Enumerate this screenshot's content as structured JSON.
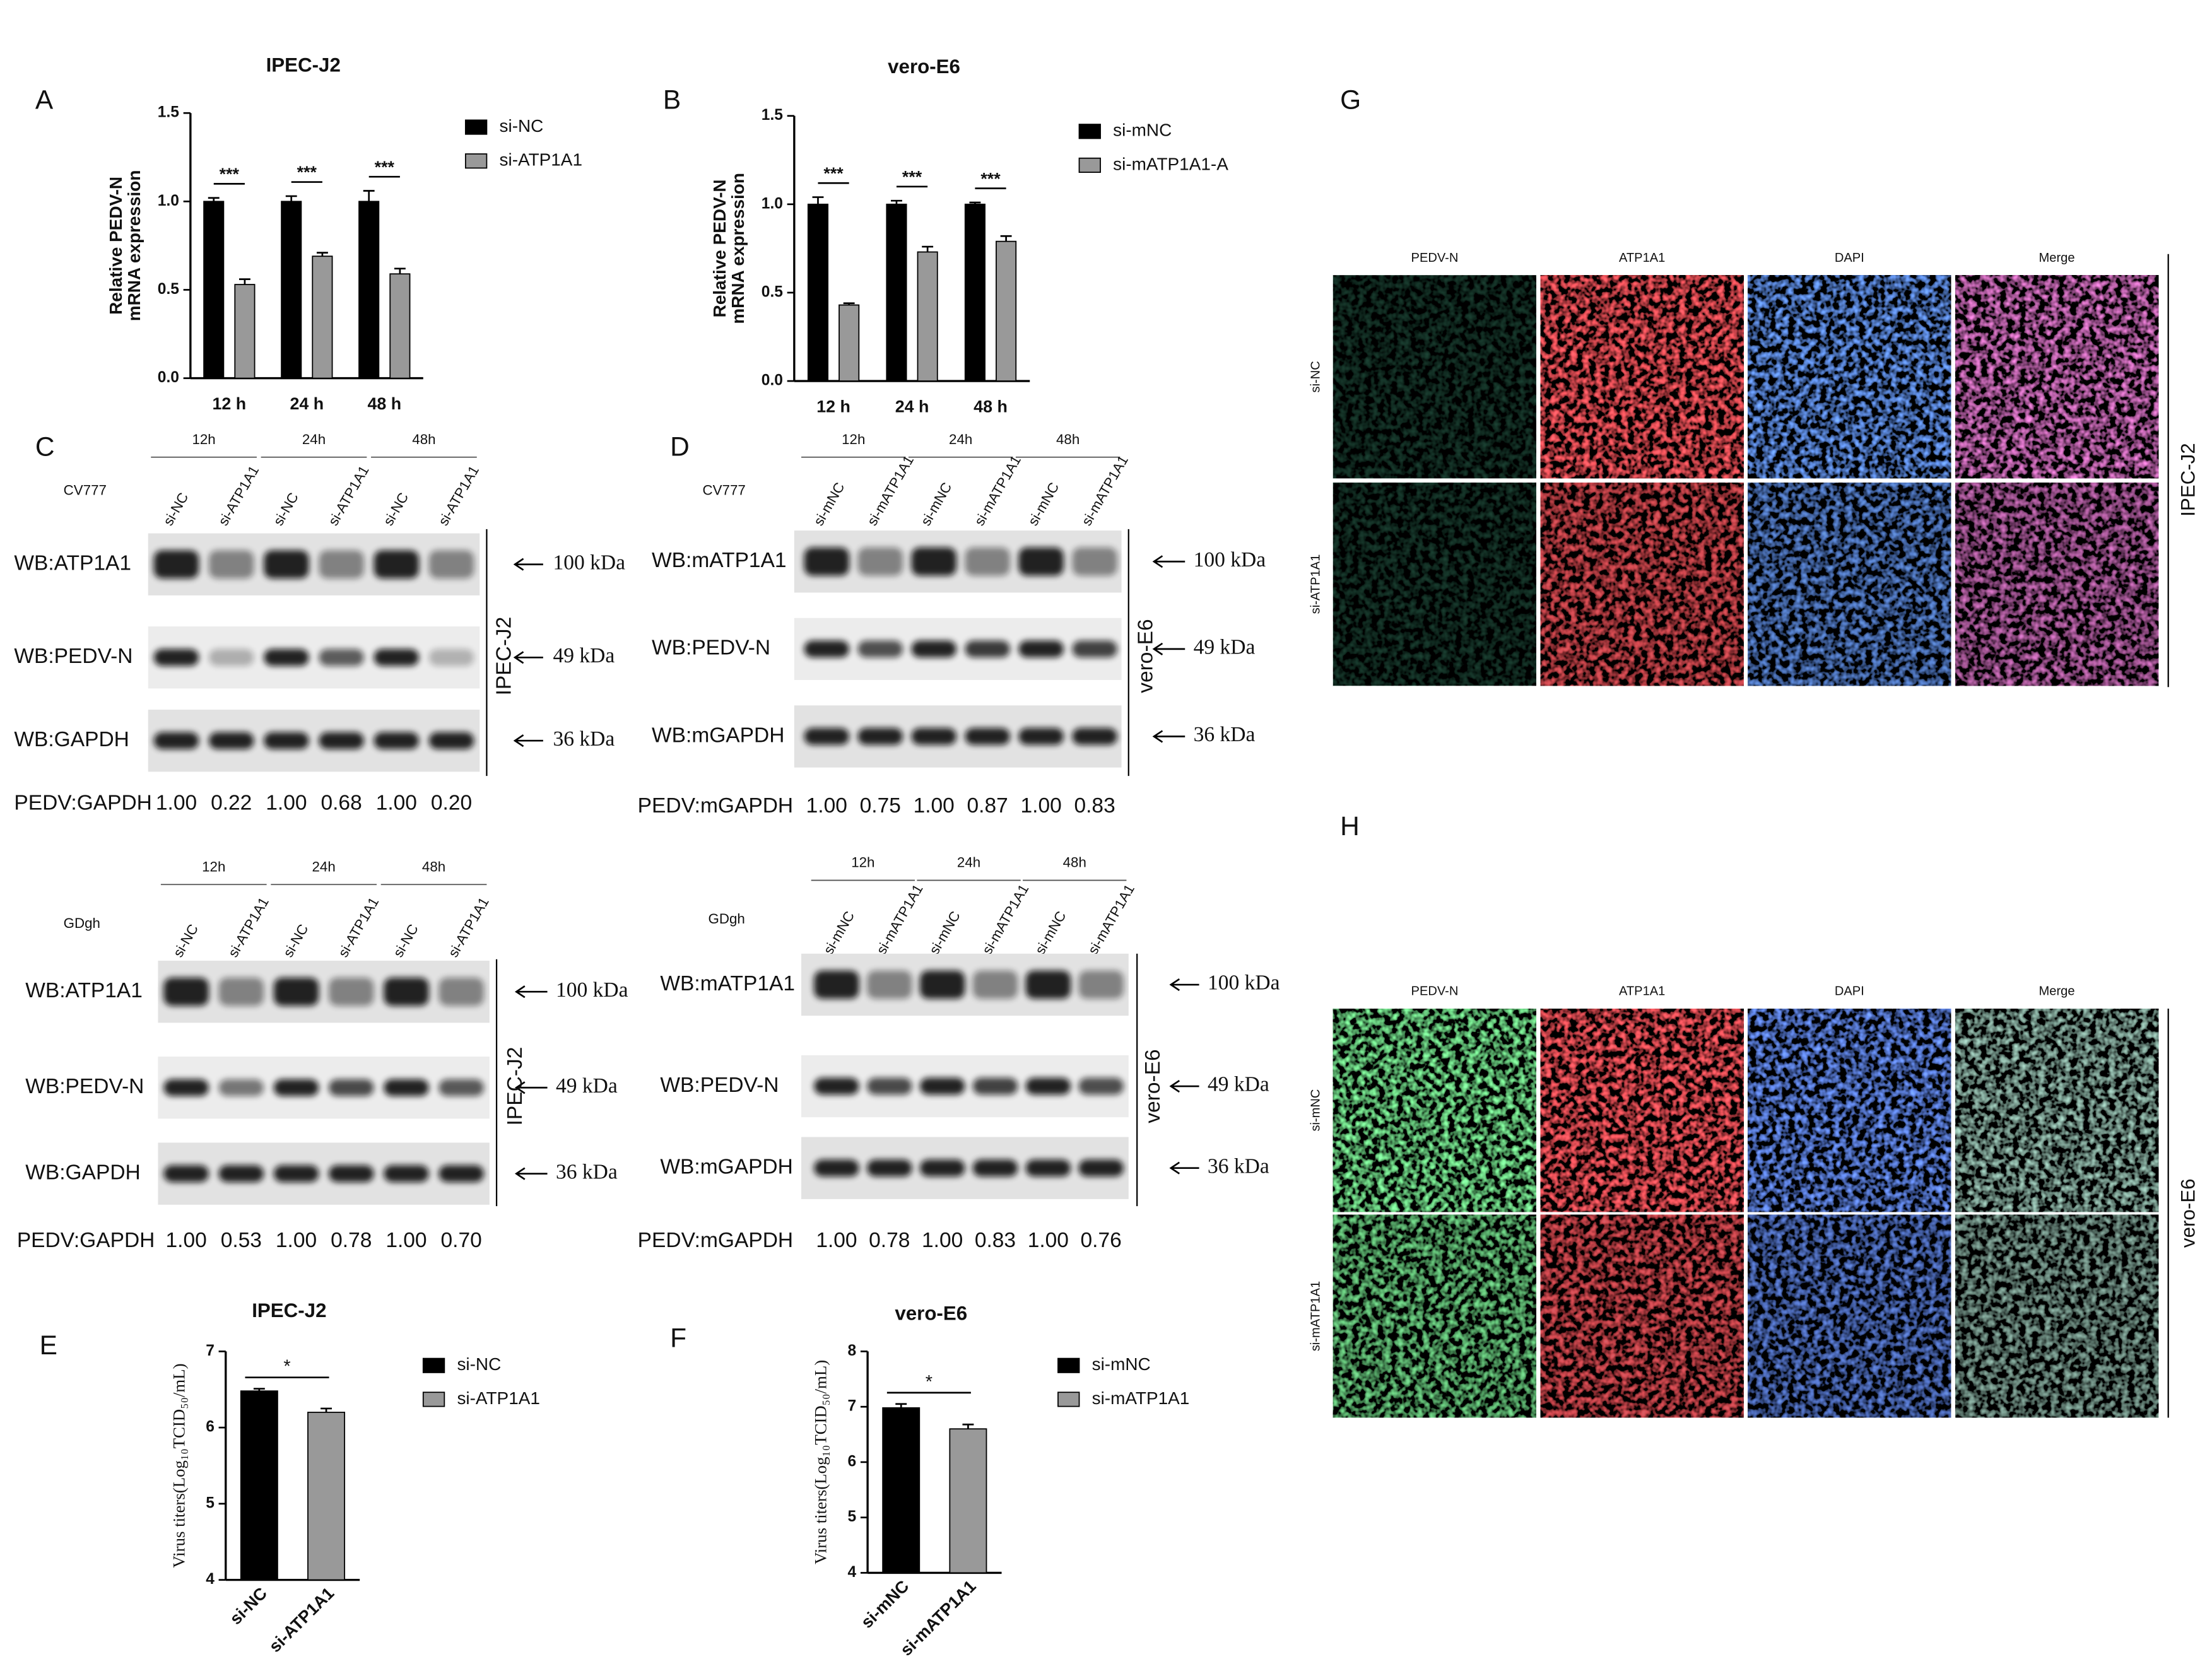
{
  "panel_letters": [
    "A",
    "B",
    "C",
    "D",
    "E",
    "F",
    "G",
    "H"
  ],
  "chart_data": [
    {
      "type": "bar",
      "title": "IPEC-J2",
      "ylabel": [
        "Relative PEDV-N",
        "mRNA expression"
      ],
      "categories": [
        "12 h",
        "24 h",
        "48 h"
      ],
      "series": [
        {
          "name": "si-NC",
          "color": "#000000",
          "values": [
            1,
            1,
            1
          ],
          "errors": [
            0.02,
            0.03,
            0.06
          ]
        },
        {
          "name": "si-ATP1A1",
          "color": "#999999",
          "values": [
            0.53,
            0.69,
            0.59
          ],
          "errors": [
            0.03,
            0.02,
            0.03
          ]
        }
      ],
      "significance": [
        "***",
        "***",
        "***"
      ],
      "ylim": [
        0,
        1.5
      ],
      "yticks": [
        {
          "value": 0,
          "label": "0.0"
        },
        {
          "value": 0.5,
          "label": "0.5"
        },
        {
          "value": 1,
          "label": "1.0"
        },
        1.5
      ]
    },
    {
      "type": "bar",
      "title": "vero-E6",
      "ylabel": [
        "Relative PEDV-N",
        "mRNA expression"
      ],
      "categories": [
        "12 h",
        "24 h",
        "48 h"
      ],
      "series": [
        {
          "name": "si-mNC",
          "color": "#000000",
          "values": [
            1,
            1,
            1
          ],
          "errors": [
            0.04,
            0.02,
            0.01
          ]
        },
        {
          "name": "si-mATP1A1-A",
          "color": "#999999",
          "values": [
            0.43,
            0.73,
            0.79
          ],
          "errors": [
            0.01,
            0.03,
            0.03
          ]
        }
      ],
      "significance": [
        "***",
        "***",
        "***"
      ],
      "ylim": [
        0,
        1.5
      ],
      "yticks": [
        {
          "value": 0,
          "label": "0.0"
        },
        {
          "value": 0.5,
          "label": "0.5"
        },
        {
          "value": 1,
          "label": "1.0"
        },
        1.5
      ]
    },
    {
      "type": "bar",
      "title": "IPEC-J2",
      "ylabel": [
        "Virus titers(Log₁₀TCID₅₀/mL)"
      ],
      "categories": [
        "si-NC",
        "si-ATP1A1"
      ],
      "values": [
        6.48,
        6.2
      ],
      "errors": [
        0.03,
        0.05
      ],
      "colors": [
        "#000000",
        "#999999"
      ],
      "legend": [
        "si-NC",
        "si-ATP1A1"
      ],
      "significance": "*",
      "ylim": [
        4,
        7
      ],
      "yticks": [
        4,
        5,
        6,
        7
      ]
    },
    {
      "type": "bar",
      "title": "vero-E6",
      "ylabel": [
        "Virus titers(Log₁₀TCID₅₀/mL)"
      ],
      "categories": [
        "si-mNC",
        "si-mATP1A1"
      ],
      "values": [
        6.98,
        6.6
      ],
      "errors": [
        0.07,
        0.08
      ],
      "colors": [
        "#000000",
        "#999999"
      ],
      "legend": [
        "si-mNC",
        "si-mATP1A1"
      ],
      "significance": "*",
      "ylim": [
        4,
        8
      ],
      "yticks": [
        4,
        5,
        6,
        7,
        8
      ]
    }
  ],
  "blots": [
    {
      "virus": "CV777",
      "times": [
        "12h",
        "24h",
        "48h"
      ],
      "lanes": [
        "si-NC",
        "si-ATP1A1",
        "si-NC",
        "si-ATP1A1",
        "si-NC",
        "si-ATP1A1"
      ],
      "rows": [
        {
          "label": "WB:ATP1A1",
          "size": "100 kDa"
        },
        {
          "label": "WB:PEDV-N",
          "size": "49 kDa"
        },
        {
          "label": "WB:GAPDH",
          "size": "36 kDa"
        }
      ],
      "cell_line": "IPEC-J2",
      "ratio_label": "PEDV:GAPDH",
      "ratios": [
        "1.00",
        "0.22",
        "1.00",
        "0.68",
        "1.00",
        "0.20"
      ]
    },
    {
      "virus": "GDgh",
      "times": [
        "12h",
        "24h",
        "48h"
      ],
      "lanes": [
        "si-NC",
        "si-ATP1A1",
        "si-NC",
        "si-ATP1A1",
        "si-NC",
        "si-ATP1A1"
      ],
      "rows": [
        {
          "label": "WB:ATP1A1",
          "size": "100 kDa"
        },
        {
          "label": "WB:PEDV-N",
          "size": "49 kDa"
        },
        {
          "label": "WB:GAPDH",
          "size": "36 kDa"
        }
      ],
      "cell_line": "IPEC-J2",
      "ratio_label": "PEDV:GAPDH",
      "ratios": [
        "1.00",
        "0.53",
        "1.00",
        "0.78",
        "1.00",
        "0.70"
      ]
    },
    {
      "virus": "CV777",
      "times": [
        "12h",
        "24h",
        "48h"
      ],
      "lanes": [
        "si-mNC",
        "si-mATP1A1",
        "si-mNC",
        "si-mATP1A1",
        "si-mNC",
        "si-mATP1A1"
      ],
      "rows": [
        {
          "label": "WB:mATP1A1",
          "size": "100 kDa"
        },
        {
          "label": "WB:PEDV-N",
          "size": "49 kDa"
        },
        {
          "label": "WB:mGAPDH",
          "size": "36 kDa"
        }
      ],
      "cell_line": "vero-E6",
      "ratio_label": "PEDV:mGAPDH",
      "ratios": [
        "1.00",
        "0.75",
        "1.00",
        "0.87",
        "1.00",
        "0.83"
      ]
    },
    {
      "virus": "GDgh",
      "times": [
        "12h",
        "24h",
        "48h"
      ],
      "lanes": [
        "si-mNC",
        "si-mATP1A1",
        "si-mNC",
        "si-mATP1A1",
        "si-mNC",
        "si-mATP1A1"
      ],
      "rows": [
        {
          "label": "WB:mATP1A1",
          "size": "100 kDa"
        },
        {
          "label": "WB:PEDV-N",
          "size": "49 kDa"
        },
        {
          "label": "WB:mGAPDH",
          "size": "36 kDa"
        }
      ],
      "cell_line": "vero-E6",
      "ratio_label": "PEDV:mGAPDH",
      "ratios": [
        "1.00",
        "0.78",
        "1.00",
        "0.83",
        "1.00",
        "0.76"
      ]
    }
  ],
  "immunofluorescence": [
    {
      "columns": [
        "PEDV-N",
        "ATP1A1",
        "DAPI",
        "Merge"
      ],
      "rows": [
        "si-NC",
        "si-ATP1A1"
      ],
      "cell_line": "IPEC-J2"
    },
    {
      "columns": [
        "PEDV-N",
        "ATP1A1",
        "DAPI",
        "Merge"
      ],
      "rows": [
        "si-mNC",
        "si-mATP1A1"
      ],
      "cell_line": "vero-E6"
    }
  ]
}
